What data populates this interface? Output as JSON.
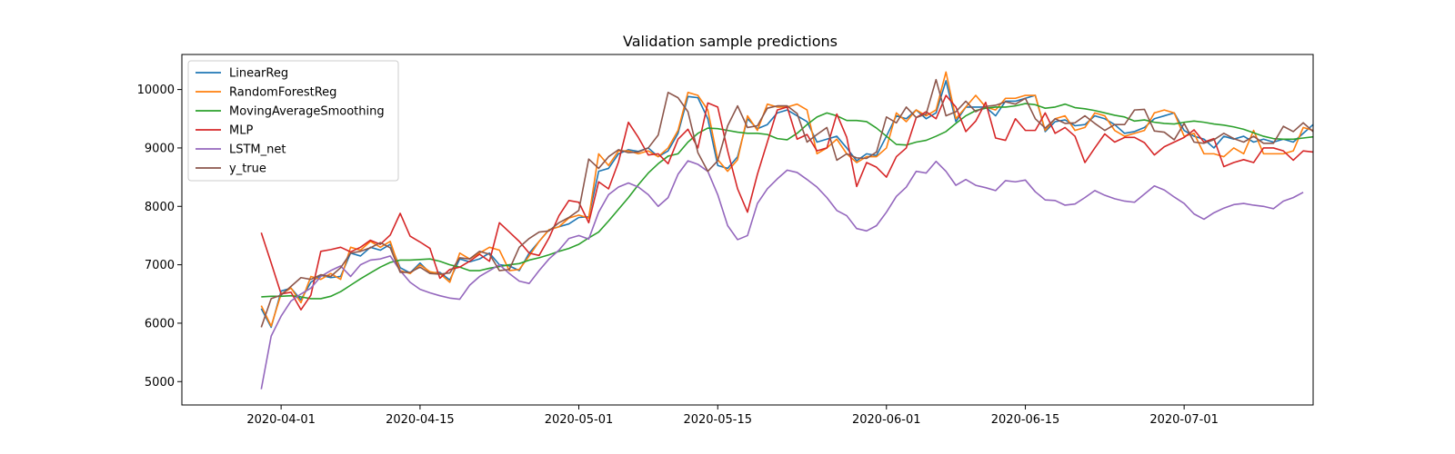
{
  "chart_data": {
    "type": "line",
    "title": "Validation sample predictions",
    "xlabel": "",
    "ylabel": "",
    "x_start": "2020-03-30",
    "x_ticks": [
      "2020-04-01",
      "2020-04-15",
      "2020-05-01",
      "2020-05-15",
      "2020-06-01",
      "2020-06-15",
      "2020-07-01"
    ],
    "y_ticks": [
      5000,
      6000,
      7000,
      8000,
      9000,
      10000
    ],
    "xlim": [
      "2020-03-22",
      "2020-07-14"
    ],
    "ylim": [
      4600,
      10600
    ],
    "legend_position": "top-left",
    "grid": false,
    "series": [
      {
        "name": "LinearReg",
        "color": "#1f77b4",
        "values": [
          6250,
          5930,
          6550,
          6600,
          6400,
          6700,
          6820,
          6780,
          6800,
          7200,
          7150,
          7300,
          7250,
          7350,
          6950,
          6860,
          7030,
          6860,
          6870,
          6740,
          7100,
          7050,
          7100,
          7200,
          7000,
          6980,
          6900,
          7200,
          7400,
          7600,
          7650,
          7700,
          7810,
          7820,
          8600,
          8650,
          8900,
          8970,
          8940,
          9000,
          8850,
          8950,
          9250,
          9880,
          9860,
          9500,
          8700,
          8650,
          8850,
          9500,
          9330,
          9400,
          9600,
          9650,
          9550,
          9450,
          9100,
          9150,
          9200,
          9000,
          8780,
          8900,
          8870,
          9200,
          9550,
          9500,
          9650,
          9500,
          9600,
          10150,
          9450,
          9700,
          9700,
          9700,
          9550,
          9800,
          9800,
          9850,
          9900,
          9280,
          9450,
          9480,
          9380,
          9400,
          9550,
          9500,
          9400,
          9250,
          9280,
          9350,
          9500,
          9550,
          9600,
          9300,
          9200,
          9150,
          9000,
          9200,
          9150,
          9200,
          9100,
          9150,
          9100,
          9150,
          9100,
          9250,
          9400
        ]
      },
      {
        "name": "RandomForestReg",
        "color": "#ff7f0e",
        "values": [
          6300,
          5950,
          6500,
          6600,
          6350,
          6800,
          6750,
          6850,
          6750,
          7300,
          7250,
          7400,
          7300,
          7400,
          6900,
          6850,
          7000,
          6880,
          6850,
          6700,
          7200,
          7100,
          7200,
          7300,
          7250,
          6900,
          6920,
          7150,
          7400,
          7600,
          7650,
          7800,
          7850,
          7800,
          8900,
          8700,
          8950,
          8950,
          8900,
          8950,
          8850,
          9000,
          9300,
          9950,
          9900,
          9650,
          8800,
          8600,
          8800,
          9550,
          9300,
          9750,
          9700,
          9700,
          9750,
          9650,
          8900,
          9000,
          9150,
          8900,
          8750,
          8850,
          8850,
          9000,
          9600,
          9450,
          9650,
          9550,
          9650,
          10300,
          9500,
          9700,
          9900,
          9700,
          9650,
          9850,
          9850,
          9900,
          9900,
          9300,
          9500,
          9550,
          9300,
          9350,
          9600,
          9550,
          9300,
          9200,
          9250,
          9300,
          9600,
          9650,
          9600,
          9200,
          9250,
          8900,
          8900,
          8850,
          9000,
          8900,
          9300,
          8900,
          8900,
          8900,
          8950,
          9350,
          9300
        ]
      },
      {
        "name": "MovingAverageSmoothing",
        "color": "#2ca02c",
        "values": [
          6450,
          6460,
          6460,
          6470,
          6450,
          6420,
          6420,
          6460,
          6540,
          6650,
          6760,
          6860,
          6960,
          7040,
          7080,
          7080,
          7090,
          7100,
          7060,
          7000,
          6960,
          6900,
          6900,
          6940,
          6970,
          7000,
          7020,
          7080,
          7120,
          7170,
          7230,
          7280,
          7350,
          7460,
          7560,
          7750,
          7950,
          8150,
          8370,
          8570,
          8730,
          8860,
          8900,
          9100,
          9250,
          9340,
          9330,
          9300,
          9270,
          9250,
          9250,
          9230,
          9160,
          9140,
          9250,
          9400,
          9530,
          9600,
          9550,
          9470,
          9470,
          9450,
          9340,
          9200,
          9060,
          9050,
          9100,
          9130,
          9200,
          9280,
          9420,
          9550,
          9640,
          9680,
          9700,
          9700,
          9720,
          9760,
          9740,
          9680,
          9700,
          9750,
          9690,
          9670,
          9640,
          9600,
          9560,
          9530,
          9460,
          9480,
          9440,
          9420,
          9410,
          9440,
          9460,
          9440,
          9410,
          9390,
          9360,
          9320,
          9260,
          9200,
          9160,
          9150,
          9150,
          9170,
          9190
        ]
      },
      {
        "name": "MLP",
        "color": "#d62728",
        "values": [
          7550,
          7030,
          6500,
          6530,
          6230,
          6480,
          7230,
          7260,
          7300,
          7220,
          7300,
          7420,
          7350,
          7510,
          7880,
          7490,
          7390,
          7280,
          6770,
          6920,
          6960,
          7060,
          7180,
          7060,
          7720,
          7560,
          7400,
          7200,
          7160,
          7460,
          7840,
          8100,
          8070,
          7720,
          8420,
          8300,
          8760,
          9440,
          9180,
          8880,
          8900,
          8730,
          9150,
          9320,
          9000,
          9770,
          9700,
          8950,
          8300,
          7900,
          8550,
          9100,
          9650,
          9700,
          9150,
          9230,
          8950,
          9000,
          9580,
          9180,
          8340,
          8750,
          8670,
          8500,
          8850,
          9000,
          9520,
          9620,
          9500,
          9900,
          9700,
          9280,
          9460,
          9780,
          9170,
          9130,
          9500,
          9300,
          9300,
          9600,
          9250,
          9350,
          9200,
          8750,
          9000,
          9240,
          9100,
          9180,
          9180,
          9090,
          8880,
          9020,
          9100,
          9180,
          9310,
          9100,
          9160,
          8680,
          8750,
          8800,
          8750,
          9000,
          9000,
          8950,
          8790,
          8950,
          8930
        ]
      },
      {
        "name": "LSTM_net",
        "color": "#9467bd",
        "values": [
          4870,
          5780,
          6120,
          6380,
          6500,
          6600,
          6800,
          6900,
          6980,
          6800,
          7000,
          7080,
          7100,
          7150,
          6900,
          6700,
          6580,
          6520,
          6470,
          6430,
          6410,
          6650,
          6800,
          6900,
          7000,
          6850,
          6720,
          6680,
          6900,
          7100,
          7250,
          7450,
          7500,
          7440,
          7900,
          8200,
          8330,
          8400,
          8330,
          8200,
          8000,
          8150,
          8550,
          8780,
          8720,
          8600,
          8200,
          7670,
          7430,
          7500,
          8050,
          8300,
          8470,
          8620,
          8580,
          8460,
          8330,
          8150,
          7930,
          7840,
          7620,
          7580,
          7670,
          7900,
          8170,
          8330,
          8600,
          8570,
          8770,
          8600,
          8360,
          8460,
          8360,
          8320,
          8270,
          8440,
          8420,
          8450,
          8250,
          8110,
          8100,
          8020,
          8040,
          8150,
          8270,
          8190,
          8130,
          8090,
          8070,
          8210,
          8350,
          8280,
          8160,
          8050,
          7870,
          7780,
          7890,
          7970,
          8030,
          8050,
          8020,
          8000,
          7960,
          8090,
          8150,
          8240
        ]
      },
      {
        "name": "y_true",
        "color": "#8c564b",
        "values": [
          5930,
          6420,
          6480,
          6630,
          6780,
          6750,
          6830,
          6800,
          6950,
          7200,
          7230,
          7290,
          7380,
          7290,
          6870,
          6870,
          6960,
          6850,
          6840,
          6860,
          7120,
          7100,
          7230,
          7180,
          6900,
          6920,
          7300,
          7450,
          7560,
          7580,
          7720,
          7810,
          7930,
          8810,
          8650,
          8850,
          8970,
          8920,
          8930,
          9000,
          9220,
          9950,
          9860,
          9620,
          8920,
          8600,
          8780,
          9380,
          9720,
          9350,
          9380,
          9680,
          9720,
          9720,
          9590,
          9100,
          9230,
          9350,
          8790,
          8900,
          8830,
          8820,
          8930,
          9530,
          9430,
          9700,
          9520,
          9580,
          10170,
          9550,
          9620,
          9800,
          9620,
          9710,
          9730,
          9790,
          9750,
          9850,
          9500,
          9340,
          9500,
          9420,
          9430,
          9550,
          9420,
          9300,
          9400,
          9400,
          9650,
          9660,
          9290,
          9270,
          9140,
          9420,
          9100,
          9080,
          9140,
          9250,
          9160,
          9100,
          9200,
          9080,
          9080,
          9370,
          9280,
          9430,
          9280
        ]
      }
    ]
  }
}
